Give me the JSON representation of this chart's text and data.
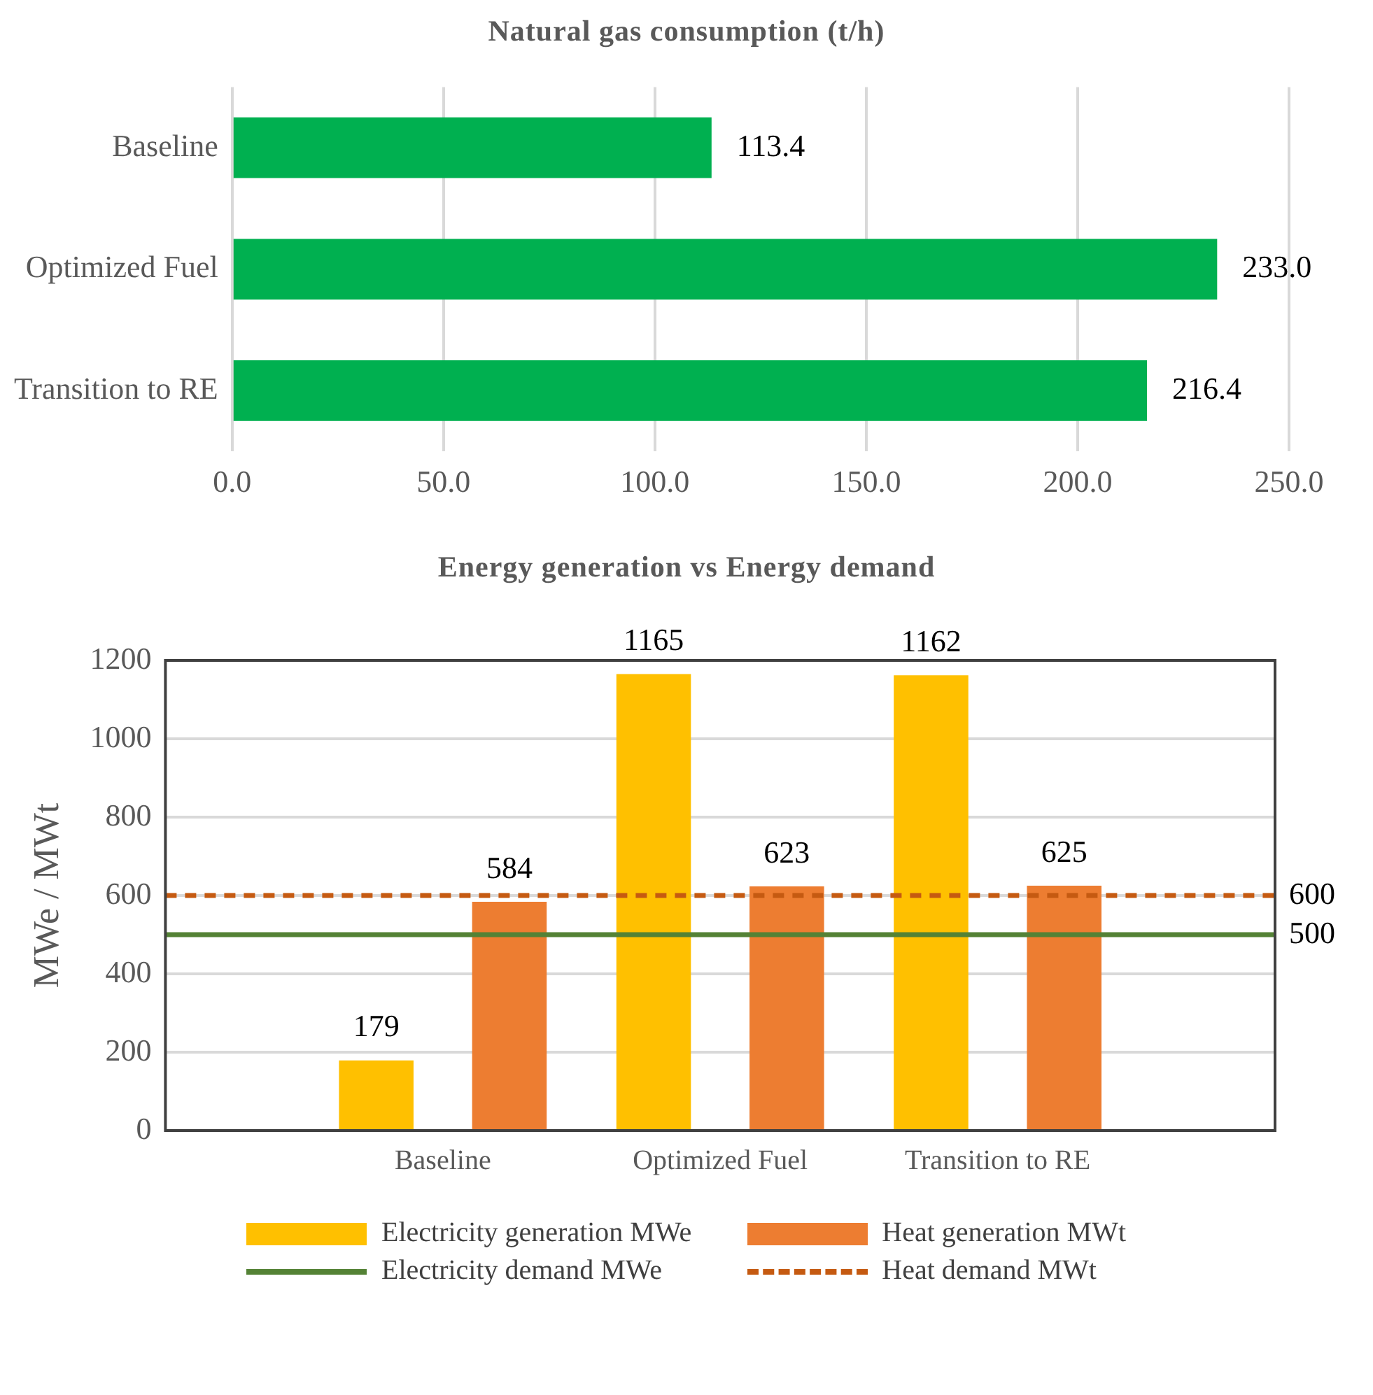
{
  "chart_data": [
    {
      "type": "bar",
      "orientation": "horizontal",
      "title": "Natural gas consumption (t/h)",
      "categories": [
        "Baseline",
        "Optimized Fuel",
        "Transition to RE"
      ],
      "values": [
        113.4,
        233.0,
        216.4
      ],
      "value_labels": [
        "113.4",
        "233.0",
        "216.4"
      ],
      "color": "#00b050",
      "xlim": [
        0,
        250
      ],
      "xticks": [
        {
          "value": 0,
          "label": "0.0"
        },
        {
          "value": 50,
          "label": "50.0"
        },
        {
          "value": 100,
          "label": "100.0"
        },
        {
          "value": 150,
          "label": "150.0"
        },
        {
          "value": 200,
          "label": "200.0"
        },
        {
          "value": 250,
          "label": "250.0"
        }
      ],
      "grid": "x",
      "legend": false
    },
    {
      "type": "bar",
      "title": "Energy generation vs Energy demand",
      "ylabel": "MWe / MWt",
      "categories": [
        null,
        "Baseline",
        "Optimized Fuel",
        "Transition to RE",
        null
      ],
      "series": [
        {
          "name": "Electricity generation MWe",
          "color": "#ffc000",
          "values": [
            null,
            179,
            1165,
            1162,
            null
          ],
          "value_labels": [
            null,
            "179",
            "1165",
            "1162",
            null
          ]
        },
        {
          "name": "Heat generation MWt",
          "color": "#ed7d31",
          "values": [
            null,
            584,
            623,
            625,
            null
          ],
          "value_labels": [
            null,
            "584",
            "623",
            "625",
            null
          ]
        },
        {
          "name": "Electricity demand MWe",
          "type": "line",
          "color": "#548235",
          "marker": "none",
          "line_style": "solid",
          "values": [
            500,
            500,
            500,
            500,
            500
          ],
          "value_labels": [
            null,
            null,
            null,
            null,
            "500"
          ]
        },
        {
          "name": "Heat demand MWt",
          "type": "line",
          "color": "#c55a11",
          "marker": "none",
          "line_style": "dashed",
          "values": [
            600,
            600,
            600,
            600,
            600
          ],
          "value_labels": [
            null,
            null,
            null,
            null,
            "600"
          ]
        }
      ],
      "ylim": [
        0,
        1200
      ],
      "yticks": [
        0,
        200,
        400,
        600,
        800,
        1000,
        1200
      ],
      "grid": "y",
      "legend": "bottom"
    }
  ]
}
